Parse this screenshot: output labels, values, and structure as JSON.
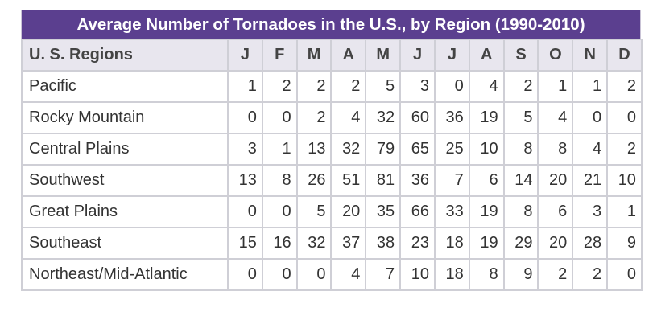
{
  "title": "Average Number of Tornadoes in the U.S., by Region (1990-2010)",
  "header": {
    "region_label": "U. S. Regions",
    "months": [
      "J",
      "F",
      "M",
      "A",
      "M",
      "J",
      "J",
      "A",
      "S",
      "O",
      "N",
      "D"
    ]
  },
  "rows": [
    {
      "region": "Pacific",
      "values": [
        "1",
        "2",
        "2",
        "2",
        "5",
        "3",
        "0",
        "4",
        "2",
        "1",
        "1",
        "2"
      ]
    },
    {
      "region": "Rocky Mountain",
      "values": [
        "0",
        "0",
        "2",
        "4",
        "32",
        "60",
        "36",
        "19",
        "5",
        "4",
        "0",
        "0"
      ]
    },
    {
      "region": "Central Plains",
      "values": [
        "3",
        "1",
        "13",
        "32",
        "79",
        "65",
        "25",
        "10",
        "8",
        "8",
        "4",
        "2"
      ]
    },
    {
      "region": "Southwest",
      "values": [
        "13",
        "8",
        "26",
        "51",
        "81",
        "36",
        "7",
        "6",
        "14",
        "20",
        "21",
        "10"
      ]
    },
    {
      "region": "Great Plains",
      "values": [
        "0",
        "0",
        "5",
        "20",
        "35",
        "66",
        "33",
        "19",
        "8",
        "6",
        "3",
        "1"
      ]
    },
    {
      "region": "Southeast",
      "values": [
        "15",
        "16",
        "32",
        "37",
        "38",
        "23",
        "18",
        "19",
        "29",
        "20",
        "28",
        "9"
      ]
    },
    {
      "region": "Northeast/Mid-Atlantic",
      "values": [
        "0",
        "0",
        "0",
        "4",
        "7",
        "10",
        "18",
        "8",
        "9",
        "2",
        "2",
        "0"
      ]
    }
  ],
  "colors": {
    "title_bg": "#5b3f8f",
    "header_bg": "#e8e6ee",
    "grid": "#cfcfd6"
  }
}
